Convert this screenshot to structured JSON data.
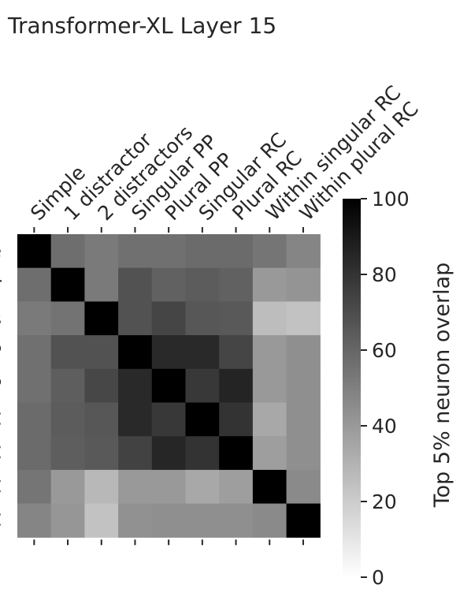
{
  "chart_data": {
    "type": "heatmap",
    "title": "Transformer-XL Layer 15",
    "categories": [
      "Simple",
      "1 distractor",
      "2 distractors",
      "Singular PP",
      "Plural PP",
      "Singular RC",
      "Plural RC",
      "Within singular RC",
      "Within plural RC"
    ],
    "values": [
      [
        100,
        57,
        52,
        56,
        56,
        58,
        58,
        54,
        48
      ],
      [
        57,
        100,
        52,
        68,
        62,
        64,
        62,
        40,
        42
      ],
      [
        52,
        55,
        100,
        68,
        73,
        66,
        65,
        26,
        24
      ],
      [
        56,
        68,
        68,
        100,
        84,
        84,
        73,
        40,
        44
      ],
      [
        56,
        63,
        72,
        84,
        100,
        78,
        86,
        40,
        44
      ],
      [
        58,
        64,
        66,
        84,
        78,
        100,
        80,
        34,
        44
      ],
      [
        58,
        63,
        65,
        74,
        85,
        80,
        100,
        38,
        44
      ],
      [
        54,
        40,
        28,
        40,
        40,
        34,
        38,
        100,
        46
      ],
      [
        48,
        41,
        24,
        43,
        44,
        44,
        44,
        46,
        100
      ]
    ],
    "colorbar": {
      "label": "Top 5% neuron overlap",
      "ticks": [
        "0",
        "20",
        "40",
        "60",
        "80",
        "100"
      ],
      "range": [
        0,
        100
      ],
      "colormap": "greys"
    }
  }
}
